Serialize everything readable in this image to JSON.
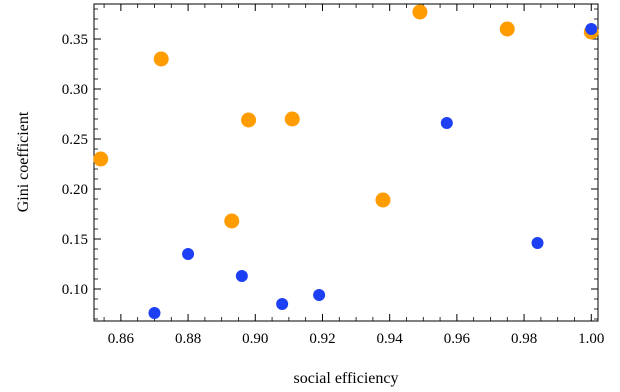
{
  "chart_data": {
    "type": "scatter",
    "xlabel": "social efficiency",
    "ylabel": "Gini coefficient",
    "xlim": [
      0.852,
      1.002
    ],
    "ylim": [
      0.068,
      0.385
    ],
    "xticks": [
      0.86,
      0.88,
      0.9,
      0.92,
      0.94,
      0.96,
      0.98,
      1.0
    ],
    "xtick_labels": [
      "0.86",
      "0.88",
      "0.90",
      "0.92",
      "0.94",
      "0.96",
      "0.98",
      "1.00"
    ],
    "yticks": [
      0.1,
      0.15,
      0.2,
      0.25,
      0.3,
      0.35
    ],
    "ytick_labels": [
      "0.10",
      "0.15",
      "0.20",
      "0.25",
      "0.30",
      "0.35"
    ],
    "frame": true,
    "grid": false,
    "series": [
      {
        "color": "#FF9C00",
        "points": [
          {
            "x": 0.854,
            "y": 0.23
          },
          {
            "x": 0.872,
            "y": 0.33
          },
          {
            "x": 0.893,
            "y": 0.168
          },
          {
            "x": 0.898,
            "y": 0.269
          },
          {
            "x": 0.911,
            "y": 0.27
          },
          {
            "x": 0.938,
            "y": 0.189
          },
          {
            "x": 0.949,
            "y": 0.377
          },
          {
            "x": 0.975,
            "y": 0.36
          },
          {
            "x": 1.0,
            "y": 0.357
          }
        ]
      },
      {
        "color": "#1E40F5",
        "points": [
          {
            "x": 0.87,
            "y": 0.076
          },
          {
            "x": 0.88,
            "y": 0.135
          },
          {
            "x": 0.896,
            "y": 0.113
          },
          {
            "x": 0.908,
            "y": 0.085
          },
          {
            "x": 0.919,
            "y": 0.094
          },
          {
            "x": 0.957,
            "y": 0.266
          },
          {
            "x": 0.984,
            "y": 0.146
          },
          {
            "x": 1.0,
            "y": 0.36
          }
        ]
      }
    ]
  }
}
